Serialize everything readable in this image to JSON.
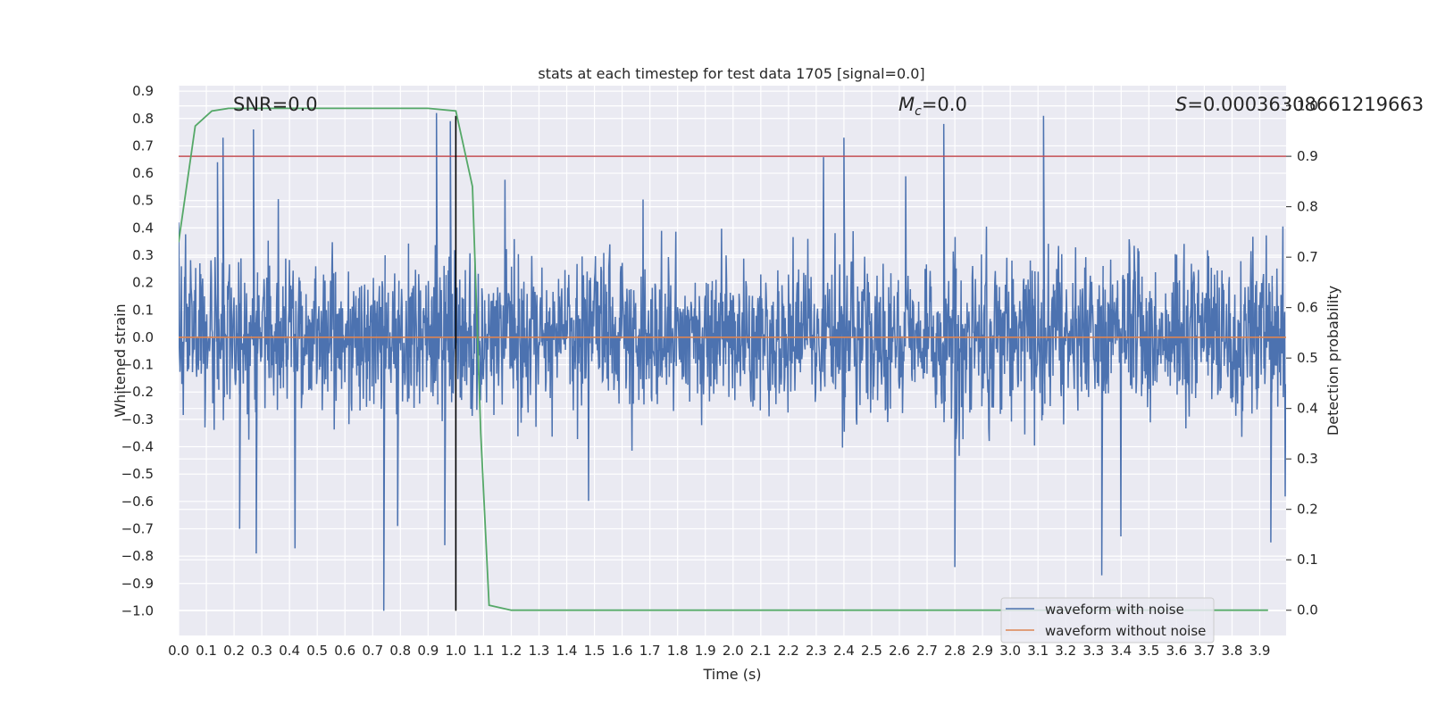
{
  "chart_data": {
    "type": "line",
    "title": "stats at each timestep for test data 1705 [signal=0.0]",
    "xlabel": "Time (s)",
    "ylabel": "Whitened strain",
    "y2label": "Detection probability",
    "xlim": [
      0.0,
      3.995
    ],
    "ylim": [
      -1.09,
      0.92
    ],
    "y2lim": [
      -0.05,
      1.04
    ],
    "xticks": [
      "0.0",
      "0.1",
      "0.2",
      "0.3",
      "0.4",
      "0.5",
      "0.6",
      "0.7",
      "0.8",
      "0.9",
      "1.0",
      "1.1",
      "1.2",
      "1.3",
      "1.4",
      "1.5",
      "1.6",
      "1.7",
      "1.8",
      "1.9",
      "2.0",
      "2.1",
      "2.2",
      "2.3",
      "2.4",
      "2.5",
      "2.6",
      "2.7",
      "2.8",
      "2.9",
      "3.0",
      "3.1",
      "3.2",
      "3.3",
      "3.4",
      "3.5",
      "3.6",
      "3.7",
      "3.8",
      "3.9"
    ],
    "yticks": [
      "0.9",
      "0.8",
      "0.7",
      "0.6",
      "0.5",
      "0.4",
      "0.3",
      "0.2",
      "0.1",
      "0.0",
      "−0.1",
      "−0.2",
      "−0.3",
      "−0.4",
      "−0.5",
      "−0.6",
      "−0.7",
      "−0.8",
      "−0.9",
      "−1.0"
    ],
    "y2ticks": [
      "1.0",
      "0.9",
      "0.8",
      "0.7",
      "0.6",
      "0.5",
      "0.4",
      "0.3",
      "0.2",
      "0.1",
      "0.0"
    ],
    "grid": true,
    "legend_position": "lower-right",
    "annotations": {
      "snr": "SNR=0.0",
      "mc_symbol": "M",
      "mc_sub": "c",
      "mc_value": "=0.0",
      "s_symbol": "S",
      "s_value": "=0.00036308661219663"
    },
    "series": [
      {
        "name": "waveform with noise",
        "color": "#4c72b0",
        "axis": "left",
        "kind": "noise",
        "y_range": [
          -1.0,
          0.82
        ],
        "peaks": [
          {
            "x": 0.0,
            "y": 0.42
          },
          {
            "x": 0.14,
            "y": 0.64
          },
          {
            "x": 0.16,
            "y": 0.73
          },
          {
            "x": 0.27,
            "y": 0.76
          },
          {
            "x": 0.93,
            "y": 0.82
          },
          {
            "x": 0.98,
            "y": 0.79
          },
          {
            "x": 2.76,
            "y": 0.78
          },
          {
            "x": 3.12,
            "y": 0.81
          },
          {
            "x": 2.4,
            "y": 0.73
          },
          {
            "x": 0.74,
            "y": -1.0
          },
          {
            "x": 0.96,
            "y": -0.76
          },
          {
            "x": 2.8,
            "y": -0.84
          },
          {
            "x": 3.33,
            "y": -0.87
          },
          {
            "x": 0.22,
            "y": -0.7
          },
          {
            "x": 0.79,
            "y": -0.69
          },
          {
            "x": 3.94,
            "y": -0.75
          },
          {
            "x": 0.28,
            "y": -0.79
          }
        ]
      },
      {
        "name": "waveform without noise",
        "color": "#dd8452",
        "axis": "left",
        "x": [
          0.0,
          3.995
        ],
        "y": [
          0.0,
          0.0
        ]
      },
      {
        "name": "detection probability",
        "color": "#55a868",
        "axis": "right",
        "x": [
          0.0,
          0.06,
          0.12,
          0.18,
          0.5,
          0.9,
          1.0,
          1.06,
          1.09,
          1.12,
          1.2,
          3.0,
          3.93
        ],
        "y": [
          0.73,
          0.96,
          0.99,
          0.995,
          0.995,
          0.995,
          0.99,
          0.84,
          0.35,
          0.01,
          0.0,
          0.0,
          0.0
        ]
      }
    ],
    "reference_lines": [
      {
        "orientation": "horizontal",
        "axis": "right",
        "value": 0.9,
        "color": "#c44e52"
      },
      {
        "orientation": "vertical",
        "axis": "x",
        "value": 1.0,
        "color": "#000000",
        "y_from": -1.0,
        "y_to": 0.81
      }
    ]
  }
}
